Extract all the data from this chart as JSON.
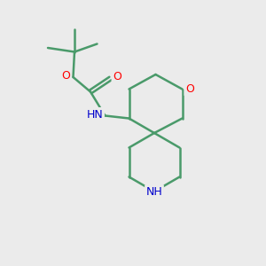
{
  "background_color": "#ebebeb",
  "bond_color": "#4a9a6a",
  "bond_width": 1.8,
  "atom_colors": {
    "O": "#ff0000",
    "N": "#0000cc",
    "C": "#4a9a6a"
  },
  "figsize": [
    3.0,
    3.0
  ],
  "dpi": 100,
  "xlim": [
    0,
    10
  ],
  "ylim": [
    0,
    10
  ]
}
